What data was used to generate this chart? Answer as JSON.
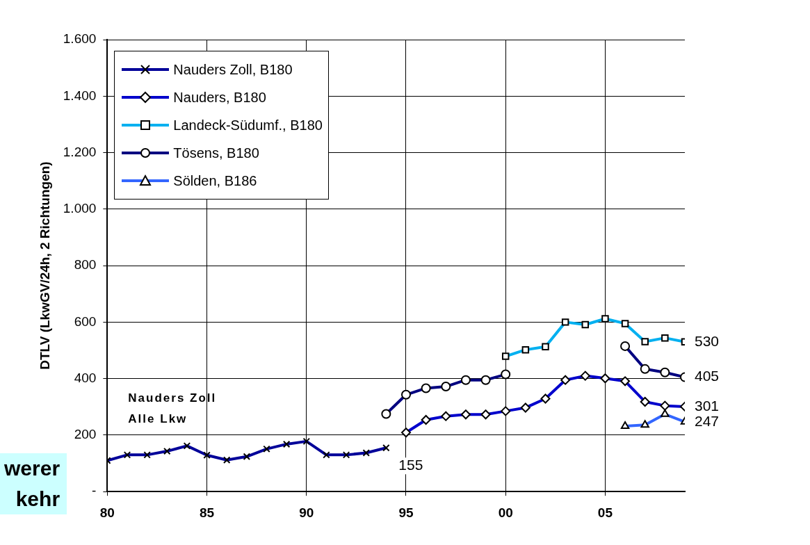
{
  "chart_data": {
    "type": "line",
    "ylabel": "DTLV (LkwGV/24h, 2 Richtungen)",
    "xlim": [
      1980,
      2009
    ],
    "xticks": [
      {
        "value": 1980,
        "label": "80"
      },
      {
        "value": 1985,
        "label": "85"
      },
      {
        "value": 1990,
        "label": "90"
      },
      {
        "value": 1995,
        "label": "95"
      },
      {
        "value": 2000,
        "label": "00"
      },
      {
        "value": 2005,
        "label": "05"
      }
    ],
    "ylim": [
      0,
      1600
    ],
    "yticks": [
      {
        "value": 0,
        "label": "-"
      },
      200,
      400,
      600,
      800,
      {
        "value": 1000,
        "label": "1.000"
      },
      {
        "value": 1200,
        "label": "1.200"
      },
      {
        "value": 1400,
        "label": "1.400"
      },
      {
        "value": 1600,
        "label": "1.600"
      }
    ],
    "grid": true,
    "legend": "top left",
    "annotations": [
      "Nauders Zoll\nAlle Lkw",
      "werer\nkehr"
    ],
    "series": [
      {
        "name": "Nauders Zoll, B180",
        "color": "#000099",
        "marker": "cross",
        "x": [
          1980,
          1981,
          1982,
          1983,
          1984,
          1985,
          1986,
          1987,
          1988,
          1989,
          1990,
          1991,
          1992,
          1993,
          1994
        ],
        "values": [
          110,
          130,
          130,
          143,
          162,
          129,
          112,
          124,
          151,
          168,
          178,
          130,
          130,
          137,
          155
        ],
        "value_labels": [
          null,
          null,
          null,
          null,
          null,
          null,
          null,
          null,
          null,
          null,
          null,
          null,
          null,
          null,
          "155"
        ]
      },
      {
        "name": "Nauders, B180",
        "color": "#0000cc",
        "marker": "diamond",
        "x": [
          1995,
          1996,
          1997,
          1998,
          1999,
          2000,
          2001,
          2002,
          2003,
          2004,
          2005,
          2006,
          2007,
          2008,
          2009
        ],
        "values": [
          209,
          254,
          267,
          273,
          273,
          285,
          297,
          329,
          395,
          410,
          401,
          391,
          318,
          304,
          301
        ],
        "value_labels": [
          null,
          null,
          null,
          null,
          null,
          null,
          null,
          null,
          null,
          null,
          null,
          null,
          null,
          null,
          "301"
        ]
      },
      {
        "name": "Landeck-Südumf., B180",
        "color": "#00b0f0",
        "marker": "square",
        "x": [
          2000,
          2001,
          2002,
          2003,
          2004,
          2005,
          2006,
          2007,
          2008,
          2009
        ],
        "values": [
          479,
          502,
          513,
          600,
          591,
          612,
          595,
          531,
          544,
          530
        ],
        "value_labels": [
          null,
          null,
          null,
          null,
          null,
          null,
          null,
          null,
          null,
          "530"
        ]
      },
      {
        "name": "Tösens, B180",
        "color": "#000080",
        "marker": "circle",
        "x": [
          1994,
          1995,
          1996,
          1997,
          1998,
          1999,
          2000,
          2001,
          2002,
          2003,
          2004,
          2005,
          2006,
          2007,
          2008,
          2009
        ],
        "values": [
          275,
          343,
          366,
          372,
          395,
          395,
          415,
          null,
          null,
          null,
          null,
          null,
          515,
          434,
          422,
          405
        ],
        "value_labels": [
          null,
          null,
          null,
          null,
          null,
          null,
          null,
          null,
          null,
          null,
          null,
          null,
          null,
          null,
          null,
          "405"
        ]
      },
      {
        "name": "Sölden, B186",
        "color": "#3366ff",
        "marker": "triangle",
        "x": [
          2006,
          2007,
          2008,
          2009
        ],
        "values": [
          232,
          236,
          274,
          247
        ],
        "value_labels": [
          null,
          null,
          null,
          "247"
        ]
      }
    ]
  }
}
